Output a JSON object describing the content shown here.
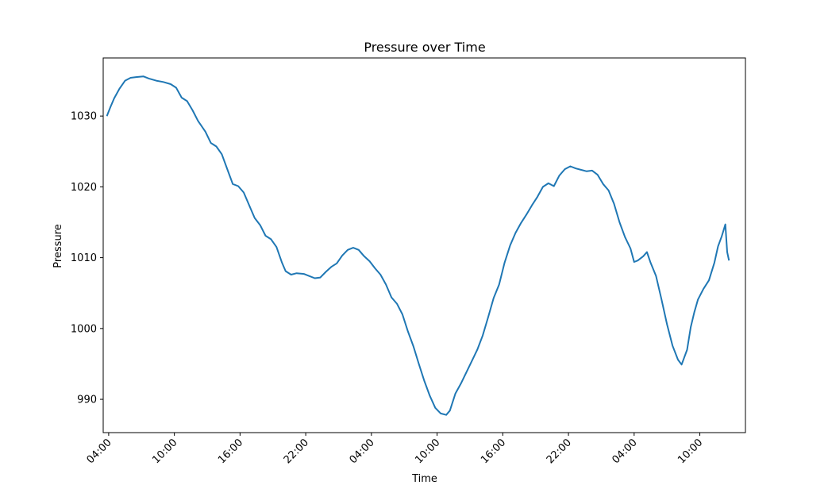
{
  "chart_data": {
    "type": "line",
    "title": "Pressure over Time",
    "xlabel": "Time",
    "ylabel": "Pressure",
    "xlim": [
      "Day 1 03:30",
      "Day 3 14:10"
    ],
    "ylim": [
      985.3,
      1038.2
    ],
    "grid": false,
    "legend": "none",
    "x_ticks": [
      "04:00",
      "10:00",
      "16:00",
      "22:00",
      "04:00",
      "10:00",
      "16:00",
      "22:00",
      "04:00",
      "10:00"
    ],
    "x_tick_times": [
      "Day 1 04:00",
      "Day 1 10:00",
      "Day 1 16:00",
      "Day 1 22:00",
      "Day 2 04:00",
      "Day 2 10:00",
      "Day 2 16:00",
      "Day 2 22:00",
      "Day 3 04:00",
      "Day 3 10:00"
    ],
    "y_ticks": [
      990,
      1000,
      1010,
      1020,
      1030
    ],
    "series": [
      {
        "color": "#1f77b4",
        "points": [
          [
            "Day 1 03:50",
            1030.0
          ],
          [
            "Day 1 04:10",
            1031.3
          ],
          [
            "Day 1 04:30",
            1032.5
          ],
          [
            "Day 1 05:00",
            1033.9
          ],
          [
            "Day 1 05:30",
            1035.0
          ],
          [
            "Day 1 06:00",
            1035.4
          ],
          [
            "Day 1 06:30",
            1035.5
          ],
          [
            "Day 1 07:10",
            1035.6
          ],
          [
            "Day 1 07:40",
            1035.3
          ],
          [
            "Day 1 08:20",
            1035.0
          ],
          [
            "Day 1 09:00",
            1034.8
          ],
          [
            "Day 1 09:40",
            1034.5
          ],
          [
            "Day 1 10:10",
            1034.0
          ],
          [
            "Day 1 10:40",
            1032.6
          ],
          [
            "Day 1 11:10",
            1032.1
          ],
          [
            "Day 1 11:40",
            1030.8
          ],
          [
            "Day 1 12:10",
            1029.3
          ],
          [
            "Day 1 12:50",
            1027.8
          ],
          [
            "Day 1 13:20",
            1026.2
          ],
          [
            "Day 1 13:50",
            1025.7
          ],
          [
            "Day 1 14:20",
            1024.6
          ],
          [
            "Day 1 14:50",
            1022.5
          ],
          [
            "Day 1 15:20",
            1020.4
          ],
          [
            "Day 1 15:50",
            1020.1
          ],
          [
            "Day 1 16:20",
            1019.2
          ],
          [
            "Day 1 16:50",
            1017.4
          ],
          [
            "Day 1 17:20",
            1015.6
          ],
          [
            "Day 1 17:50",
            1014.6
          ],
          [
            "Day 1 18:20",
            1013.1
          ],
          [
            "Day 1 18:50",
            1012.6
          ],
          [
            "Day 1 19:20",
            1011.5
          ],
          [
            "Day 1 19:50",
            1009.3
          ],
          [
            "Day 1 20:10",
            1008.1
          ],
          [
            "Day 1 20:40",
            1007.6
          ],
          [
            "Day 1 21:10",
            1007.8
          ],
          [
            "Day 1 21:50",
            1007.7
          ],
          [
            "Day 1 22:20",
            1007.4
          ],
          [
            "Day 1 22:50",
            1007.1
          ],
          [
            "Day 1 23:20",
            1007.2
          ],
          [
            "Day 1 23:50",
            1008.0
          ],
          [
            "Day 2 00:20",
            1008.7
          ],
          [
            "Day 2 00:50",
            1009.2
          ],
          [
            "Day 2 01:20",
            1010.3
          ],
          [
            "Day 2 01:50",
            1011.1
          ],
          [
            "Day 2 02:20",
            1011.4
          ],
          [
            "Day 2 02:50",
            1011.1
          ],
          [
            "Day 2 03:20",
            1010.2
          ],
          [
            "Day 2 03:50",
            1009.5
          ],
          [
            "Day 2 04:20",
            1008.5
          ],
          [
            "Day 2 04:50",
            1007.6
          ],
          [
            "Day 2 05:20",
            1006.2
          ],
          [
            "Day 2 05:50",
            1004.4
          ],
          [
            "Day 2 06:20",
            1003.5
          ],
          [
            "Day 2 06:50",
            1002.0
          ],
          [
            "Day 2 07:20",
            999.6
          ],
          [
            "Day 2 07:50",
            997.5
          ],
          [
            "Day 2 08:20",
            995.0
          ],
          [
            "Day 2 08:50",
            992.6
          ],
          [
            "Day 2 09:20",
            990.5
          ],
          [
            "Day 2 09:50",
            988.8
          ],
          [
            "Day 2 10:20",
            988.0
          ],
          [
            "Day 2 10:50",
            987.8
          ],
          [
            "Day 2 11:10",
            988.4
          ],
          [
            "Day 2 11:40",
            990.8
          ],
          [
            "Day 2 12:10",
            992.2
          ],
          [
            "Day 2 12:40",
            993.8
          ],
          [
            "Day 2 13:10",
            995.4
          ],
          [
            "Day 2 13:40",
            997.0
          ],
          [
            "Day 2 14:10",
            999.0
          ],
          [
            "Day 2 14:40",
            1001.6
          ],
          [
            "Day 2 15:10",
            1004.3
          ],
          [
            "Day 2 15:40",
            1006.2
          ],
          [
            "Day 2 16:10",
            1009.3
          ],
          [
            "Day 2 16:40",
            1011.7
          ],
          [
            "Day 2 17:10",
            1013.5
          ],
          [
            "Day 2 17:40",
            1014.9
          ],
          [
            "Day 2 18:10",
            1016.1
          ],
          [
            "Day 2 18:40",
            1017.4
          ],
          [
            "Day 2 19:10",
            1018.6
          ],
          [
            "Day 2 19:40",
            1020.0
          ],
          [
            "Day 2 20:10",
            1020.5
          ],
          [
            "Day 2 20:40",
            1020.1
          ],
          [
            "Day 2 21:10",
            1021.6
          ],
          [
            "Day 2 21:40",
            1022.5
          ],
          [
            "Day 2 22:10",
            1022.9
          ],
          [
            "Day 2 22:40",
            1022.6
          ],
          [
            "Day 2 23:10",
            1022.4
          ],
          [
            "Day 2 23:40",
            1022.2
          ],
          [
            "Day 3 00:10",
            1022.3
          ],
          [
            "Day 3 00:40",
            1021.7
          ],
          [
            "Day 3 01:10",
            1020.4
          ],
          [
            "Day 3 01:40",
            1019.5
          ],
          [
            "Day 3 02:10",
            1017.6
          ],
          [
            "Day 3 02:40",
            1015.0
          ],
          [
            "Day 3 03:10",
            1012.9
          ],
          [
            "Day 3 03:40",
            1011.3
          ],
          [
            "Day 3 04:00",
            1009.4
          ],
          [
            "Day 3 04:20",
            1009.6
          ],
          [
            "Day 3 04:50",
            1010.2
          ],
          [
            "Day 3 05:10",
            1010.8
          ],
          [
            "Day 3 05:30",
            1009.3
          ],
          [
            "Day 3 06:00",
            1007.4
          ],
          [
            "Day 3 06:30",
            1004.1
          ],
          [
            "Day 3 07:00",
            1000.6
          ],
          [
            "Day 3 07:30",
            997.6
          ],
          [
            "Day 3 08:00",
            995.6
          ],
          [
            "Day 3 08:20",
            994.9
          ],
          [
            "Day 3 08:50",
            997.0
          ],
          [
            "Day 3 09:10",
            1000.2
          ],
          [
            "Day 3 09:30",
            1002.3
          ],
          [
            "Day 3 09:50",
            1004.1
          ],
          [
            "Day 3 10:20",
            1005.6
          ],
          [
            "Day 3 10:50",
            1006.8
          ],
          [
            "Day 3 11:20",
            1009.3
          ],
          [
            "Day 3 11:40",
            1011.6
          ],
          [
            "Day 3 12:00",
            1013.0
          ],
          [
            "Day 3 12:20",
            1014.7
          ],
          [
            "Day 3 12:30",
            1010.8
          ],
          [
            "Day 3 12:40",
            1009.6
          ]
        ]
      }
    ]
  }
}
